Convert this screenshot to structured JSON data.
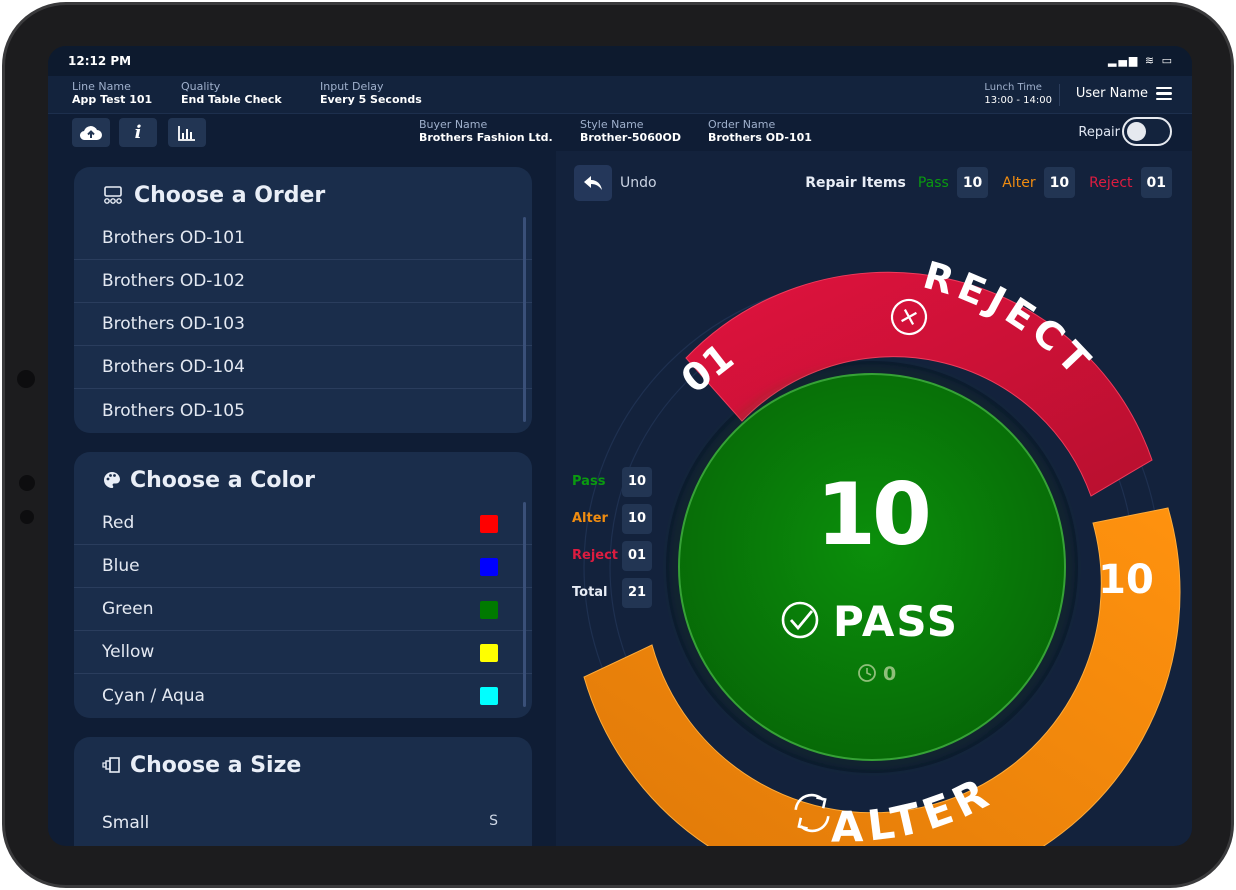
{
  "status": {
    "time": "12:12 PM"
  },
  "header": {
    "line_name": {
      "label": "Line Name",
      "value": "App Test 101"
    },
    "quality": {
      "label": "Quality",
      "value": "End Table Check"
    },
    "input_delay": {
      "label": "Input Delay",
      "value": "Every 5 Seconds"
    },
    "lunch_time": {
      "label": "Lunch Time",
      "value": "13:00 - 14:00"
    },
    "user_name": "User Name",
    "buyer": {
      "label": "Buyer Name",
      "value": "Brothers Fashion Ltd."
    },
    "style": {
      "label": "Style Name",
      "value": "Brother-5060OD"
    },
    "order": {
      "label": "Order Name",
      "value": "Brothers OD-101"
    },
    "repair_label": "Repair",
    "repair_enabled": false
  },
  "toolbar": {
    "icons": [
      "cloud-upload-icon",
      "info-icon",
      "bar-chart-icon"
    ]
  },
  "orders": {
    "title": "Choose a Order",
    "items": [
      "Brothers OD-101",
      "Brothers OD-102",
      "Brothers OD-103",
      "Brothers OD-104",
      "Brothers OD-105"
    ]
  },
  "colors": {
    "title": "Choose a Color",
    "items": [
      {
        "name": "Red",
        "swatch": "#ff0000"
      },
      {
        "name": "Blue",
        "swatch": "#0000ff"
      },
      {
        "name": "Green",
        "swatch": "#007a00"
      },
      {
        "name": "Yellow",
        "swatch": "#ffff00"
      },
      {
        "name": "Cyan / Aqua",
        "swatch": "#00ffff"
      }
    ]
  },
  "sizes": {
    "title": "Choose a Size",
    "items": [
      {
        "name": "Small",
        "abbr": "S"
      }
    ]
  },
  "actions": {
    "undo_label": "Undo",
    "repair_items": {
      "title": "Repair Items",
      "pass_label": "Pass",
      "pass_value": "10",
      "alter_label": "Alter",
      "alter_value": "10",
      "reject_label": "Reject",
      "reject_value": "01"
    }
  },
  "stats": {
    "pass_label": "Pass",
    "pass_value": "10",
    "alter_label": "Alter",
    "alter_value": "10",
    "reject_label": "Reject",
    "reject_value": "01",
    "total_label": "Total",
    "total_value": "21"
  },
  "dial": {
    "pass_count": "10",
    "pass_label": "PASS",
    "timer_value": "0",
    "reject_label": "REJECT",
    "reject_count": "01",
    "alter_label": "ALTER",
    "alter_count": "10",
    "colors": {
      "pass": "#087d08",
      "reject": "#d0143a",
      "alter": "#f28a0c"
    }
  }
}
